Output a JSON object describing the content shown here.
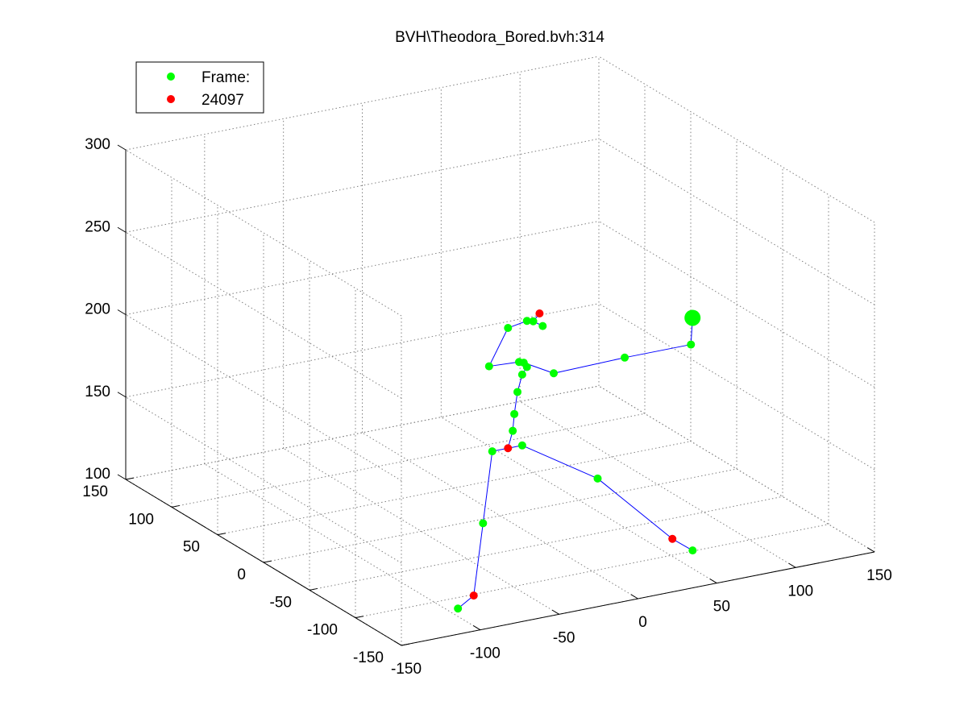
{
  "chart_data": {
    "type": "scatter",
    "title": "BVH\\Theodora_Bored.bvh:314",
    "axes": {
      "x": {
        "range": [
          -150,
          150
        ],
        "ticks": [
          "-150",
          "-100",
          "-50",
          "0",
          "50",
          "100",
          "150"
        ]
      },
      "y": {
        "range": [
          -150,
          150
        ],
        "ticks": [
          "-150",
          "-100",
          "-50",
          "0",
          "50",
          "100",
          "150"
        ]
      },
      "z": {
        "range": [
          100,
          300
        ],
        "ticks": [
          "100",
          "150",
          "200",
          "250",
          "300"
        ]
      }
    },
    "grid": true,
    "legend": {
      "placement": "top-left",
      "entries": [
        {
          "label": "Frame:",
          "color": "#00ff00"
        },
        {
          "label": "24097",
          "color": "#ff0000"
        }
      ]
    },
    "colors": {
      "joint": "#00ff00",
      "key_joint": "#ff0000",
      "bone": "#0000ff",
      "grid": "#808080"
    },
    "joints": [
      {
        "name": "hips",
        "x": 5,
        "y": 0,
        "z": 140,
        "color": "#ff0000"
      },
      {
        "name": "l_hip",
        "x": -5,
        "y": 0,
        "z": 140,
        "color": "#00ff00"
      },
      {
        "name": "r_hip",
        "x": 14,
        "y": 0,
        "z": 140,
        "color": "#00ff00"
      },
      {
        "name": "l_knee",
        "x": -5,
        "y": 10,
        "z": 93,
        "color": "#00ff00"
      },
      {
        "name": "l_ankle",
        "x": -8,
        "y": 15,
        "z": 48,
        "color": "#ff0000"
      },
      {
        "name": "l_toe",
        "x": -18,
        "y": 15,
        "z": 42,
        "color": "#00ff00"
      },
      {
        "name": "r_knee",
        "x": 63,
        "y": 2,
        "z": 110,
        "color": "#00ff00"
      },
      {
        "name": "r_ankle",
        "x": 90,
        "y": -33,
        "z": 80,
        "color": "#ff0000"
      },
      {
        "name": "r_toe",
        "x": 97,
        "y": -43,
        "z": 75,
        "color": "#00ff00"
      },
      {
        "name": "spine1",
        "x": 8,
        "y": 0,
        "z": 150,
        "color": "#00ff00"
      },
      {
        "name": "spine2",
        "x": 9,
        "y": 0,
        "z": 160,
        "color": "#00ff00"
      },
      {
        "name": "spine3",
        "x": 11,
        "y": 0,
        "z": 173,
        "color": "#00ff00"
      },
      {
        "name": "spine4",
        "x": 14,
        "y": 0,
        "z": 183,
        "color": "#00ff00"
      },
      {
        "name": "chest_a",
        "x": 17,
        "y": 0,
        "z": 187,
        "color": "#00ff00"
      },
      {
        "name": "chest_b",
        "x": 12,
        "y": 0,
        "z": 191,
        "color": "#00ff00"
      },
      {
        "name": "chest_c",
        "x": 15,
        "y": 0,
        "z": 190,
        "color": "#00ff00"
      },
      {
        "name": "l_clavicle",
        "x": -7,
        "y": 0,
        "z": 192,
        "color": "#00ff00"
      },
      {
        "name": "l_shoulder",
        "x": 5,
        "y": 0,
        "z": 213,
        "color": "#00ff00"
      },
      {
        "name": "l_elbow",
        "x": 17,
        "y": 0,
        "z": 215,
        "color": "#00ff00"
      },
      {
        "name": "l_wrist",
        "x": 21,
        "y": 0,
        "z": 214,
        "color": "#00ff00"
      },
      {
        "name": "l_hand",
        "x": 27,
        "y": 0,
        "z": 210,
        "color": "#00ff00"
      },
      {
        "name": "l_finger",
        "x": 25,
        "y": 0,
        "z": 218,
        "color": "#ff0000"
      },
      {
        "name": "r_clavicle",
        "x": 34,
        "y": 0,
        "z": 180,
        "color": "#00ff00"
      },
      {
        "name": "r_shoulder",
        "x": 79,
        "y": 0,
        "z": 181,
        "color": "#00ff00"
      },
      {
        "name": "r_elbow",
        "x": 121,
        "y": 0,
        "z": 181,
        "color": "#00ff00"
      },
      {
        "name": "r_hand",
        "x": 122,
        "y": 0,
        "z": 197,
        "color": "#00ff00",
        "large": true
      }
    ],
    "bones": [
      [
        "hips",
        "l_hip"
      ],
      [
        "hips",
        "r_hip"
      ],
      [
        "l_hip",
        "l_knee"
      ],
      [
        "l_knee",
        "l_ankle"
      ],
      [
        "l_ankle",
        "l_toe"
      ],
      [
        "r_hip",
        "r_knee"
      ],
      [
        "r_knee",
        "r_ankle"
      ],
      [
        "r_ankle",
        "r_toe"
      ],
      [
        "hips",
        "spine1"
      ],
      [
        "spine1",
        "spine2"
      ],
      [
        "spine2",
        "spine3"
      ],
      [
        "spine3",
        "spine4"
      ],
      [
        "spine4",
        "chest_a"
      ],
      [
        "chest_a",
        "chest_b"
      ],
      [
        "chest_b",
        "chest_c"
      ],
      [
        "chest_b",
        "l_clavicle"
      ],
      [
        "l_clavicle",
        "l_shoulder"
      ],
      [
        "l_shoulder",
        "l_elbow"
      ],
      [
        "l_elbow",
        "l_wrist"
      ],
      [
        "l_wrist",
        "l_hand"
      ],
      [
        "l_wrist",
        "l_finger"
      ],
      [
        "chest_c",
        "r_clavicle"
      ],
      [
        "r_clavicle",
        "r_shoulder"
      ],
      [
        "r_shoulder",
        "r_elbow"
      ],
      [
        "r_elbow",
        "r_hand"
      ]
    ]
  }
}
